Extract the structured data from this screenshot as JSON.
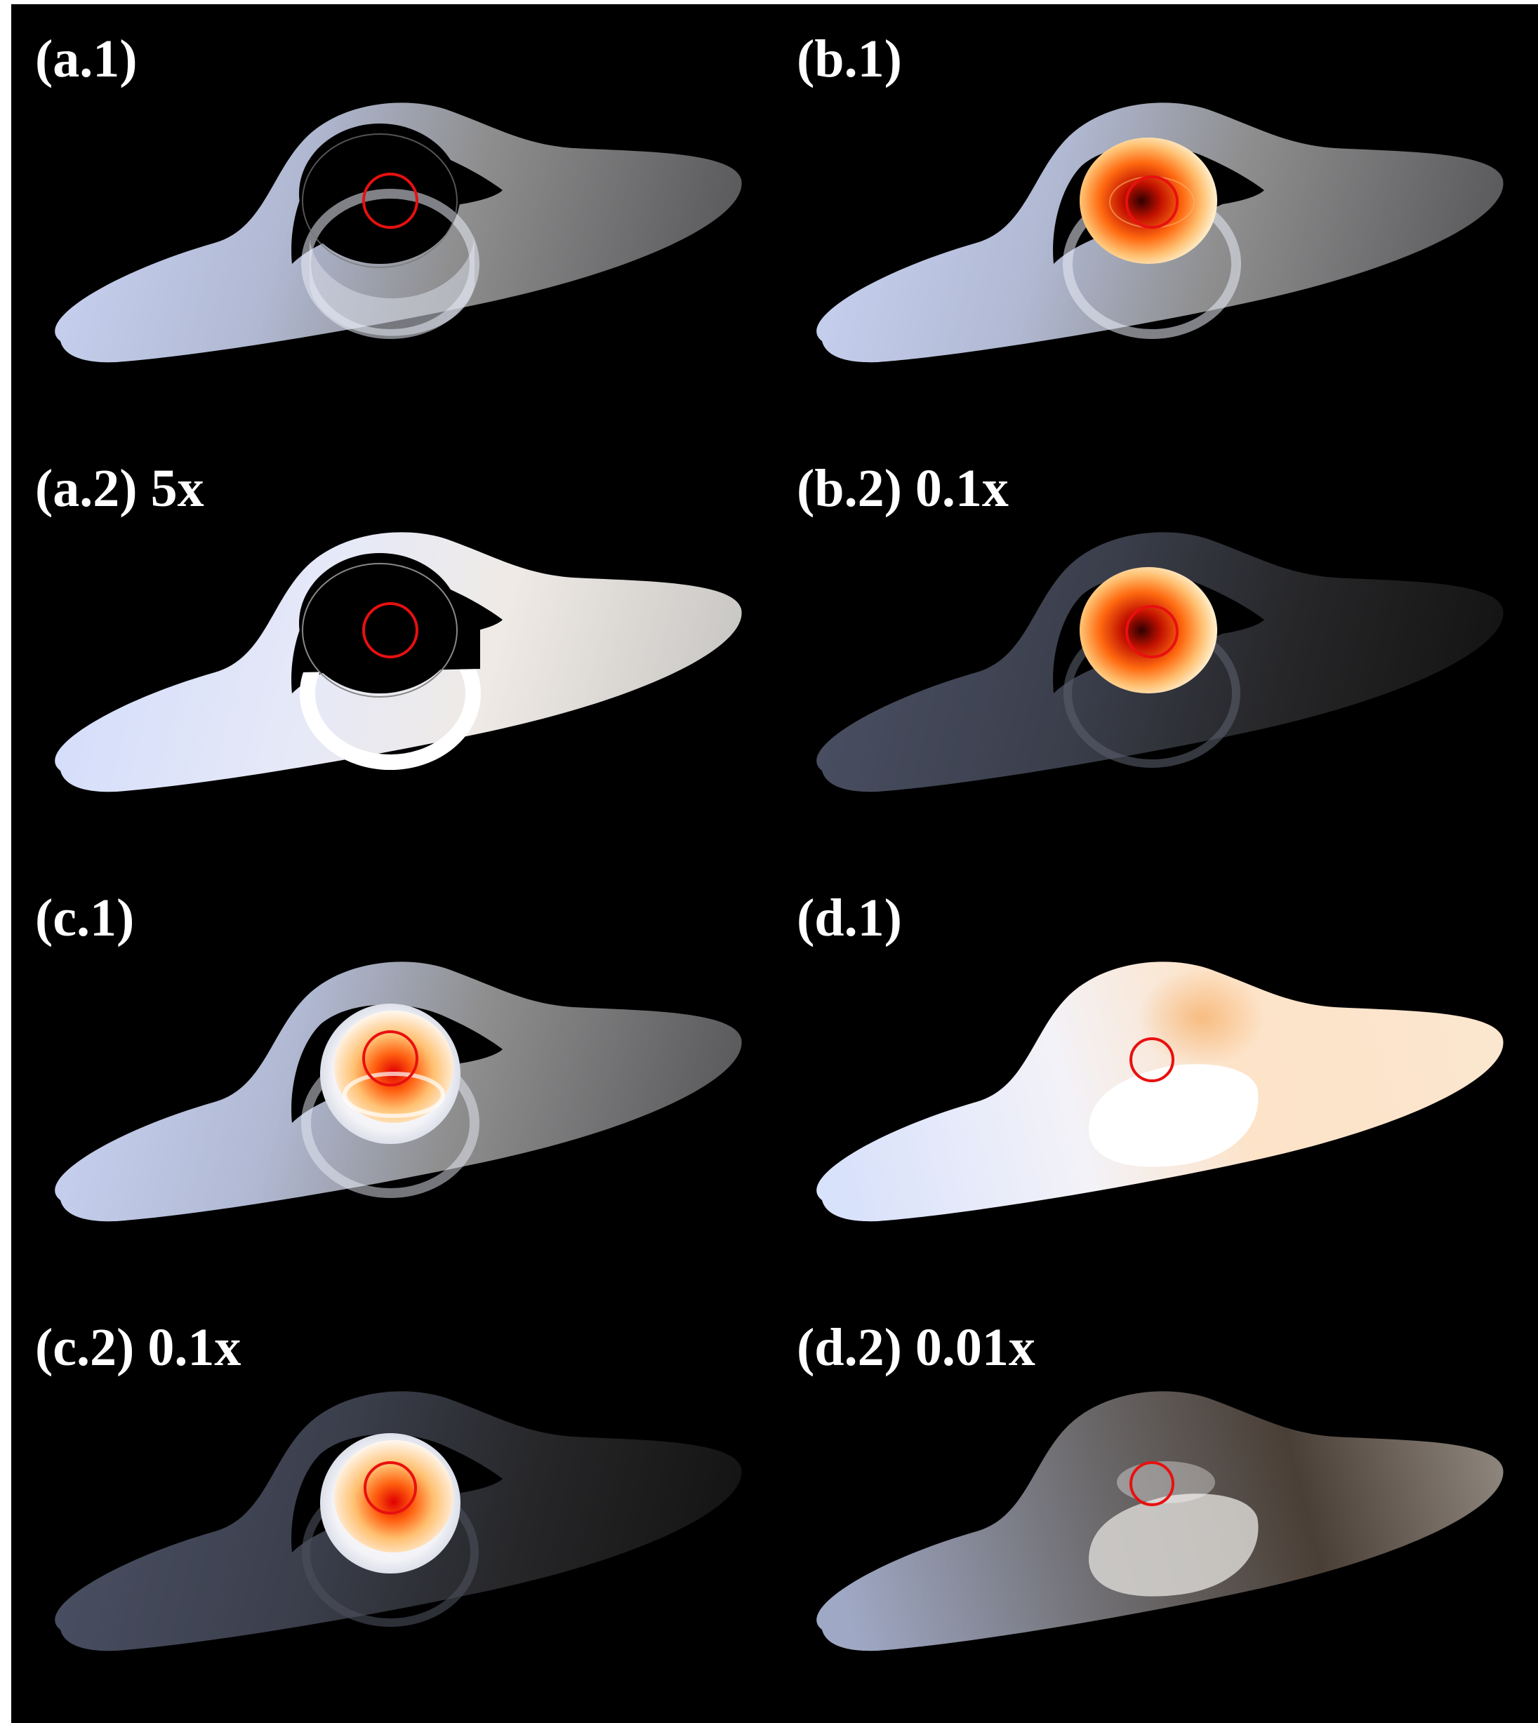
{
  "panels": {
    "a1": {
      "label": "(a.1)"
    },
    "b1": {
      "label": "(b.1)"
    },
    "a2": {
      "label": "(a.2) 5x"
    },
    "b2": {
      "label": "(b.2) 0.1x"
    },
    "c1": {
      "label": "(c.1)"
    },
    "d1": {
      "label": "(d.1)"
    },
    "c2": {
      "label": "(c.2) 0.1x"
    },
    "d2": {
      "label": "(d.2) 0.01x"
    }
  },
  "colors": {
    "background": "#000000",
    "ring_marker": "#e81010",
    "disk_blue_white": "#c8d4f0",
    "disk_grey": "#8a8a8a",
    "hot_core": "#e02000",
    "warm_glow": "#ffb040"
  }
}
